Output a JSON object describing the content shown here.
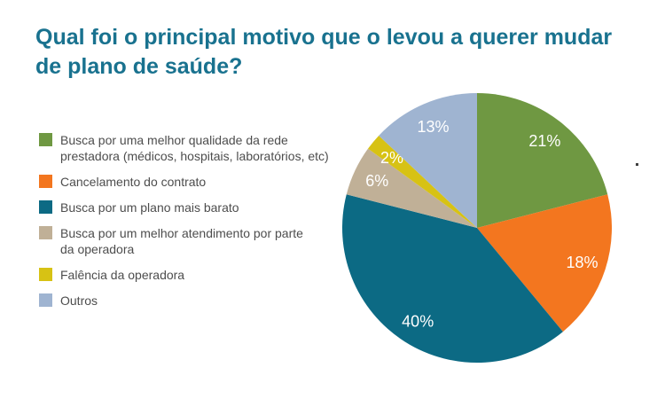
{
  "title": {
    "text": "Qual foi o principal motivo que o levou a querer mudar\nde plano de saúde?",
    "color": "#19728f"
  },
  "chart_data": {
    "type": "pie",
    "title": "Qual foi o principal motivo que o levou a querer mudar de plano de saúde?",
    "legend_position": "left",
    "direction": "clockwise",
    "start_angle_deg": 0,
    "data_label_color": "#ffffff",
    "background": "#ffffff",
    "slices": [
      {
        "label": "Busca por uma melhor qualidade da rede\nprestadora (médicos, hospitais, laboratórios, etc)",
        "value": 21,
        "pct_label": "21%",
        "color": "#6f9842"
      },
      {
        "label": "Cancelamento do contrato",
        "value": 18,
        "pct_label": "18%",
        "color": "#f3761f"
      },
      {
        "label": "Busca por um plano mais barato",
        "value": 40,
        "pct_label": "40%",
        "color": "#0c6a84"
      },
      {
        "label": "Busca por um melhor atendimento por parte\nda operadora",
        "value": 6,
        "pct_label": "6%",
        "color": "#c0b097"
      },
      {
        "label": "Falência da operadora",
        "value": 2,
        "pct_label": "2%",
        "color": "#d7c214"
      },
      {
        "label": "Outros",
        "value": 13,
        "pct_label": "13%",
        "color": "#9fb4d1"
      }
    ]
  }
}
